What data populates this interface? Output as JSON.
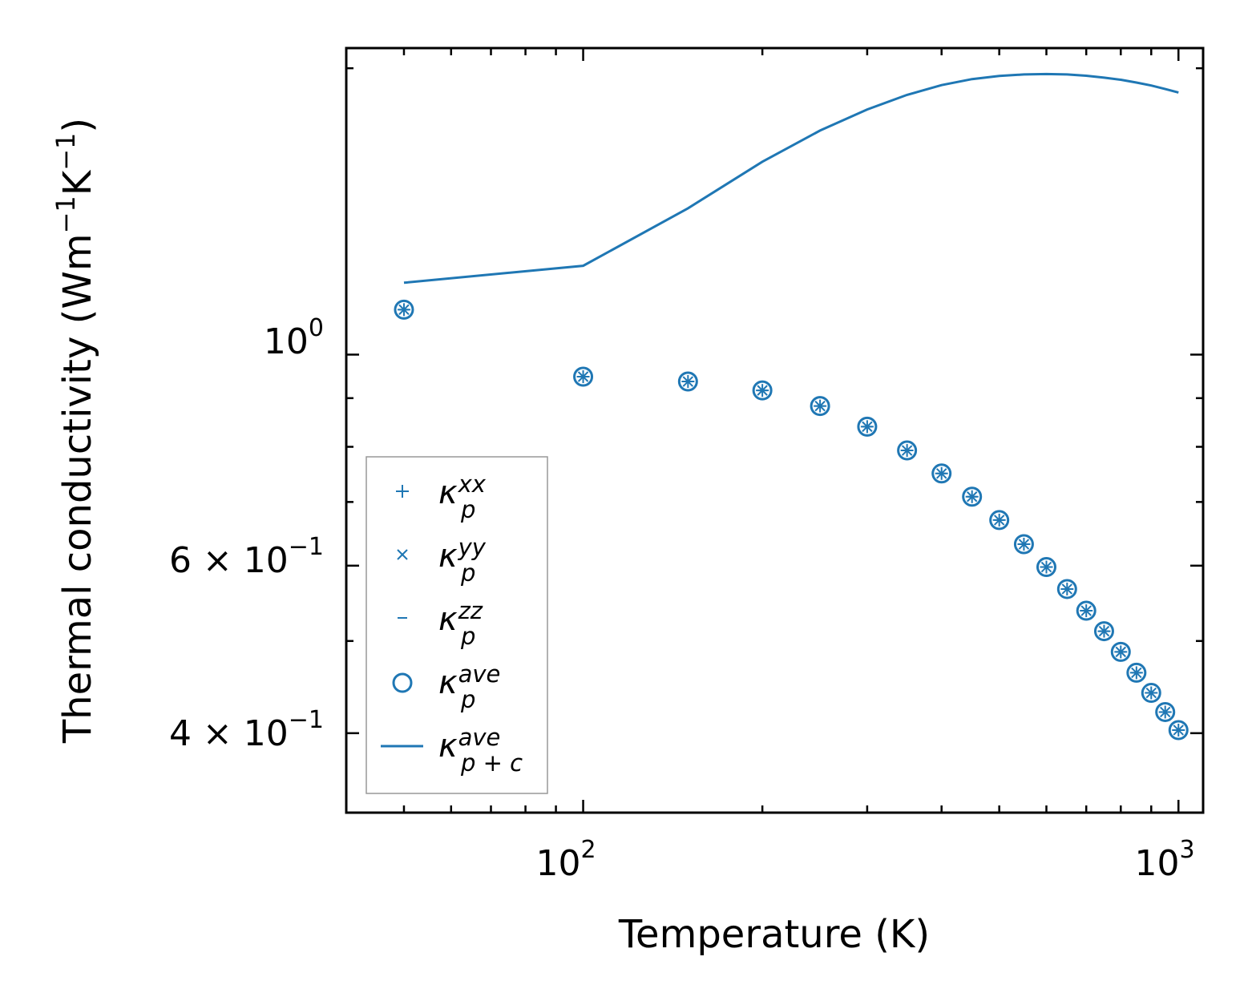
{
  "chart_data": {
    "type": "scatter",
    "title": "",
    "xlabel": "Temperature (K)",
    "ylabel_main": "Thermal conductivity (Wm",
    "ylabel_mid": "K",
    "ylabel_close": ")",
    "ylabel_exp": "−1",
    "xscale": "log",
    "yscale": "log",
    "xlim": [
      40,
      1100
    ],
    "ylim": [
      0.33,
      2.1
    ],
    "xticks": [
      {
        "value": 100,
        "base": "10",
        "exp": "2"
      },
      {
        "value": 1000,
        "base": "10",
        "exp": "3"
      }
    ],
    "yticks": [
      {
        "value": 1.0,
        "base": "10",
        "exp": "0"
      },
      {
        "value": 0.6,
        "base": "6 × 10",
        "exp": "−1"
      },
      {
        "value": 0.4,
        "base": "4 × 10",
        "exp": "−1"
      }
    ],
    "y_minor_ticks": [
      0.5,
      0.7,
      0.8,
      0.9,
      2.0
    ],
    "x": [
      50,
      100,
      150,
      200,
      250,
      300,
      350,
      400,
      450,
      500,
      550,
      600,
      650,
      700,
      750,
      800,
      850,
      900,
      950,
      1000
    ],
    "series": [
      {
        "name": "kappa_p^xx",
        "marker": "plus",
        "values": [
          1.115,
          0.948,
          0.937,
          0.917,
          0.883,
          0.84,
          0.793,
          0.75,
          0.709,
          0.67,
          0.632,
          0.598,
          0.567,
          0.538,
          0.512,
          0.487,
          0.463,
          0.441,
          0.421,
          0.403
        ]
      },
      {
        "name": "kappa_p^yy",
        "marker": "x",
        "values": [
          1.115,
          0.948,
          0.937,
          0.917,
          0.883,
          0.84,
          0.793,
          0.75,
          0.709,
          0.67,
          0.632,
          0.598,
          0.567,
          0.538,
          0.512,
          0.487,
          0.463,
          0.441,
          0.421,
          0.403
        ]
      },
      {
        "name": "kappa_p^zz",
        "marker": "hline",
        "values": [
          1.115,
          0.948,
          0.937,
          0.917,
          0.883,
          0.84,
          0.793,
          0.75,
          0.709,
          0.67,
          0.632,
          0.598,
          0.567,
          0.538,
          0.512,
          0.487,
          0.463,
          0.441,
          0.421,
          0.403
        ]
      },
      {
        "name": "kappa_p^ave",
        "marker": "circle",
        "values": [
          1.115,
          0.948,
          0.937,
          0.917,
          0.883,
          0.84,
          0.793,
          0.75,
          0.709,
          0.67,
          0.632,
          0.598,
          0.567,
          0.538,
          0.512,
          0.487,
          0.463,
          0.441,
          0.421,
          0.403
        ]
      },
      {
        "name": "kappa_p+c^ave",
        "marker": "line",
        "x": [
          50,
          100,
          150,
          200,
          250,
          300,
          350,
          400,
          450,
          500,
          550,
          600,
          650,
          700,
          750,
          800,
          850,
          900,
          950,
          1000
        ],
        "values": [
          1.19,
          1.24,
          1.425,
          1.595,
          1.72,
          1.81,
          1.875,
          1.92,
          1.948,
          1.963,
          1.97,
          1.972,
          1.97,
          1.964,
          1.955,
          1.945,
          1.932,
          1.918,
          1.902,
          1.886
        ]
      }
    ],
    "legend": {
      "position": "lower-left",
      "entries": [
        {
          "marker": "plus",
          "sym": "κ",
          "sub": "p",
          "sup": "xx"
        },
        {
          "marker": "x",
          "sym": "κ",
          "sub": "p",
          "sup": "yy"
        },
        {
          "marker": "hline",
          "sym": "κ",
          "sub": "p",
          "sup": "zz"
        },
        {
          "marker": "circle",
          "sym": "κ",
          "sub": "p",
          "sup": "ave"
        },
        {
          "marker": "line",
          "sym": "κ",
          "sub": "p + c",
          "sup": "ave"
        }
      ]
    },
    "colors": {
      "series": "#1f77b4",
      "axis": "#000000",
      "legend_border": "#999999"
    }
  }
}
